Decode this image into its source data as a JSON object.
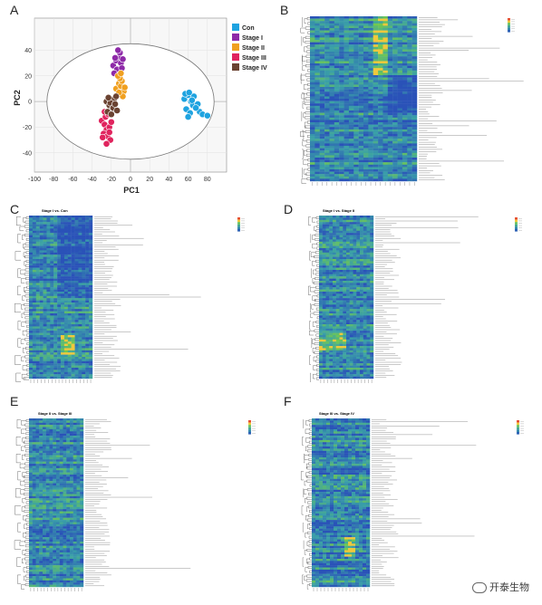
{
  "panels": {
    "a": {
      "letter": "A"
    },
    "b": {
      "letter": "B"
    },
    "c": {
      "letter": "C",
      "title": "Stage I vs. Con"
    },
    "d": {
      "letter": "D",
      "title": "Stage I vs. Stage II"
    },
    "e": {
      "letter": "E",
      "title": "Stage II vs. Stage III"
    },
    "f": {
      "letter": "F",
      "title": "Stage III vs. Stage IV"
    }
  },
  "colors": {
    "con": "#1fa3e0",
    "stage1": "#8e2aa8",
    "stage2": "#f0a020",
    "stage3": "#e0245e",
    "stage4": "#6b4332",
    "heat_low": "#2a52b8",
    "heat_mid": "#3aa0a8",
    "heat_high": "#7ad040"
  },
  "chart_data": {
    "type": "scatter",
    "title": "",
    "xlabel": "PC1",
    "ylabel": "PC2",
    "xlim": [
      -100,
      100
    ],
    "ylim": [
      -55,
      65
    ],
    "xticks": [
      -100,
      -80,
      -60,
      -40,
      -20,
      0,
      20,
      40,
      60,
      80
    ],
    "yticks": [
      -40,
      -20,
      0,
      20,
      40
    ],
    "grid": true,
    "legend_position": "right",
    "confidence_ellipse": {
      "center": [
        0,
        0
      ],
      "rx": 87,
      "ry": 45
    },
    "series": [
      {
        "name": "Con",
        "color": "#1fa3e0",
        "x": [
          56,
          60,
          63,
          65,
          58,
          62,
          66,
          70,
          72,
          60,
          64,
          68,
          57,
          75,
          80,
          61
        ],
        "y": [
          2,
          5,
          0,
          -3,
          -6,
          -9,
          4,
          -2,
          -8,
          -12,
          1,
          -5,
          6,
          -10,
          -11,
          7
        ]
      },
      {
        "name": "Stage I",
        "color": "#8e2aa8",
        "x": [
          -18,
          -15,
          -12,
          -10,
          -14,
          -17,
          -11,
          -9,
          -13,
          -16,
          -12,
          -8
        ],
        "y": [
          28,
          32,
          35,
          30,
          25,
          22,
          38,
          26,
          40,
          34,
          20,
          33
        ]
      },
      {
        "name": "Stage II",
        "color": "#f0a020",
        "x": [
          -15,
          -12,
          -10,
          -7,
          -14,
          -9,
          -11,
          -6,
          -13,
          -8,
          -12,
          -10
        ],
        "y": [
          10,
          14,
          12,
          8,
          5,
          16,
          18,
          11,
          20,
          4,
          7,
          22
        ]
      },
      {
        "name": "Stage III",
        "color": "#e0245e",
        "x": [
          -30,
          -27,
          -25,
          -22,
          -28,
          -24,
          -21,
          -26,
          -23,
          -29,
          -20,
          -25,
          -27,
          -22
        ],
        "y": [
          -15,
          -18,
          -22,
          -20,
          -25,
          -27,
          -30,
          -12,
          -10,
          -28,
          -16,
          -33,
          -8,
          -24
        ]
      },
      {
        "name": "Stage IV",
        "color": "#6b4332",
        "x": [
          -25,
          -22,
          -19,
          -17,
          -24,
          -20,
          -15,
          -21,
          -18,
          -23,
          -16,
          -14
        ],
        "y": [
          0,
          -3,
          -6,
          2,
          -8,
          -10,
          4,
          -1,
          -5,
          3,
          -2,
          -7
        ]
      }
    ]
  },
  "watermark": {
    "text": "开泰生物"
  }
}
